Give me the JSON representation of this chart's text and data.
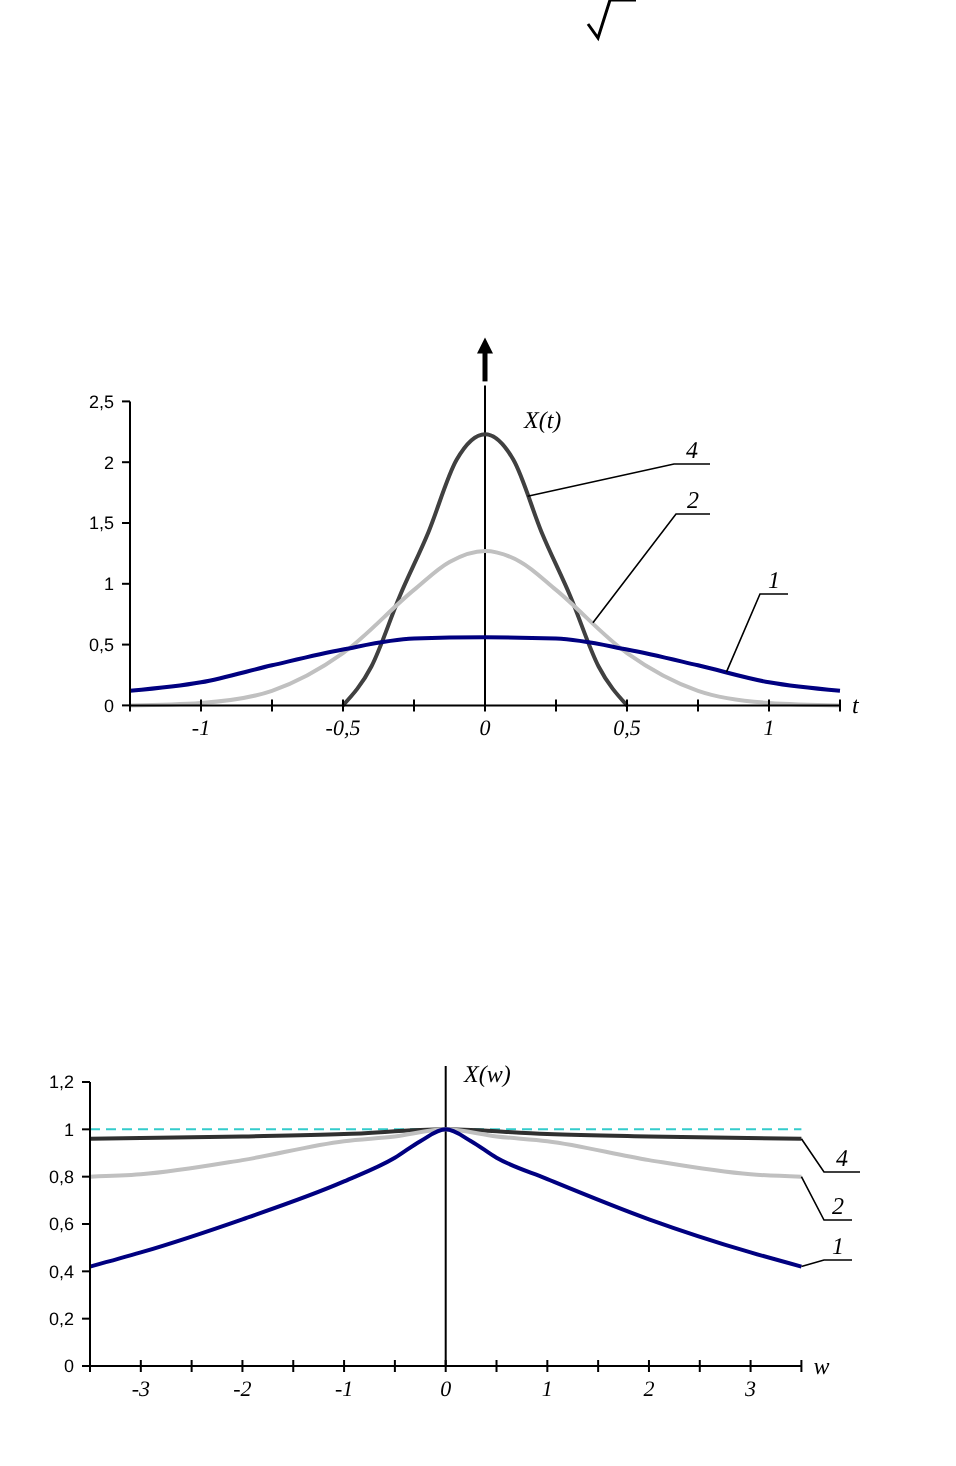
{
  "chart_data": [
    {
      "type": "line",
      "xlabel": "t",
      "ylabel": "X(t)",
      "xlim": [
        -1.25,
        1.25
      ],
      "ylim": [
        0,
        2.5
      ],
      "xticks": [
        {
          "value": -1.25,
          "label": null
        },
        {
          "value": -1,
          "label": "-1"
        },
        {
          "value": -0.75,
          "label": null
        },
        {
          "value": -0.5,
          "label": "-0,5"
        },
        {
          "value": -0.25,
          "label": null
        },
        {
          "value": 0,
          "label": "0"
        },
        {
          "value": 0.25,
          "label": null
        },
        {
          "value": 0.5,
          "label": "0,5"
        },
        {
          "value": 0.75,
          "label": null
        },
        {
          "value": 1,
          "label": "1"
        },
        {
          "value": 1.25,
          "label": null
        }
      ],
      "yticks": [
        0,
        {
          "value": 0.5,
          "label": "0,5"
        },
        1,
        {
          "value": 1.5,
          "label": "1,5"
        },
        2,
        {
          "value": 2.5,
          "label": "2,5"
        }
      ],
      "ref_lines": [
        {
          "axis": "x",
          "value": 0,
          "color": "#000000"
        }
      ],
      "series": [
        {
          "name": "4",
          "color": "#404040",
          "x": [
            -0.5,
            -0.4,
            -0.3,
            -0.2,
            -0.1,
            0,
            0.1,
            0.2,
            0.3,
            0.4,
            0.5
          ],
          "values": [
            0,
            0.32,
            0.9,
            1.42,
            2.02,
            2.23,
            2.02,
            1.42,
            0.9,
            0.32,
            0
          ]
        },
        {
          "name": "2",
          "color": "#c0c0c0",
          "x": [
            -1.25,
            -1,
            -0.75,
            -0.5,
            -0.25,
            -0.125,
            0,
            0.125,
            0.25,
            0.5,
            0.75,
            1,
            1.25
          ],
          "values": [
            0,
            0.02,
            0.12,
            0.43,
            0.95,
            1.18,
            1.27,
            1.18,
            0.95,
            0.43,
            0.12,
            0.02,
            0
          ]
        },
        {
          "name": "1",
          "color": "#000080",
          "x": [
            -1.25,
            -1,
            -0.75,
            -0.5,
            -0.25,
            0,
            0.25,
            0.5,
            0.75,
            1,
            1.25
          ],
          "values": [
            0.12,
            0.19,
            0.33,
            0.46,
            0.55,
            0.56,
            0.55,
            0.46,
            0.33,
            0.19,
            0.12
          ]
        }
      ]
    },
    {
      "type": "line",
      "xlabel": "w",
      "ylabel": "X(w)",
      "xlim": [
        -3.5,
        3.5
      ],
      "ylim": [
        0,
        1.2
      ],
      "xticks": [
        {
          "value": -3.5,
          "label": null
        },
        {
          "value": -3,
          "label": "-3"
        },
        {
          "value": -2.5,
          "label": null
        },
        {
          "value": -2,
          "label": "-2"
        },
        {
          "value": -1.5,
          "label": null
        },
        {
          "value": -1,
          "label": "-1"
        },
        {
          "value": -0.5,
          "label": null
        },
        {
          "value": 0,
          "label": "0"
        },
        {
          "value": 0.5,
          "label": null
        },
        {
          "value": 1,
          "label": "1"
        },
        {
          "value": 1.5,
          "label": null
        },
        {
          "value": 2,
          "label": "2"
        },
        {
          "value": 2.5,
          "label": null
        },
        {
          "value": 3,
          "label": "3"
        },
        {
          "value": 3.5,
          "label": null
        }
      ],
      "yticks": [
        0,
        {
          "value": 0.2,
          "label": "0,2"
        },
        {
          "value": 0.4,
          "label": "0,4"
        },
        {
          "value": 0.6,
          "label": "0,6"
        },
        {
          "value": 0.8,
          "label": "0,8"
        },
        1,
        {
          "value": 1.2,
          "label": "1,2"
        }
      ],
      "ref_lines": [
        {
          "axis": "y",
          "value": 1,
          "color": "#33cccc",
          "line_style": "dashed"
        },
        {
          "axis": "x",
          "value": 0,
          "color": "#000000"
        }
      ],
      "series": [
        {
          "name": "4",
          "color": "#303030",
          "x": [
            -3.5,
            -2,
            -1,
            0,
            1,
            2,
            3.5
          ],
          "values": [
            0.96,
            0.97,
            0.98,
            1,
            0.98,
            0.97,
            0.96
          ]
        },
        {
          "name": "2",
          "color": "#c0c0c0",
          "x": [
            -3.5,
            -3,
            -2,
            -1,
            -0.5,
            0,
            0.5,
            1,
            2,
            3,
            3.5
          ],
          "values": [
            0.8,
            0.81,
            0.87,
            0.95,
            0.97,
            1,
            0.97,
            0.95,
            0.87,
            0.81,
            0.8
          ]
        },
        {
          "name": "1",
          "color": "#000080",
          "x": [
            -3.5,
            -3,
            -2,
            -1,
            -0.5,
            -0.25,
            0,
            0.25,
            0.5,
            1,
            2,
            3,
            3.5
          ],
          "values": [
            0.42,
            0.48,
            0.62,
            0.78,
            0.88,
            0.95,
            1,
            0.95,
            0.88,
            0.79,
            0.62,
            0.48,
            0.42
          ]
        }
      ]
    }
  ]
}
